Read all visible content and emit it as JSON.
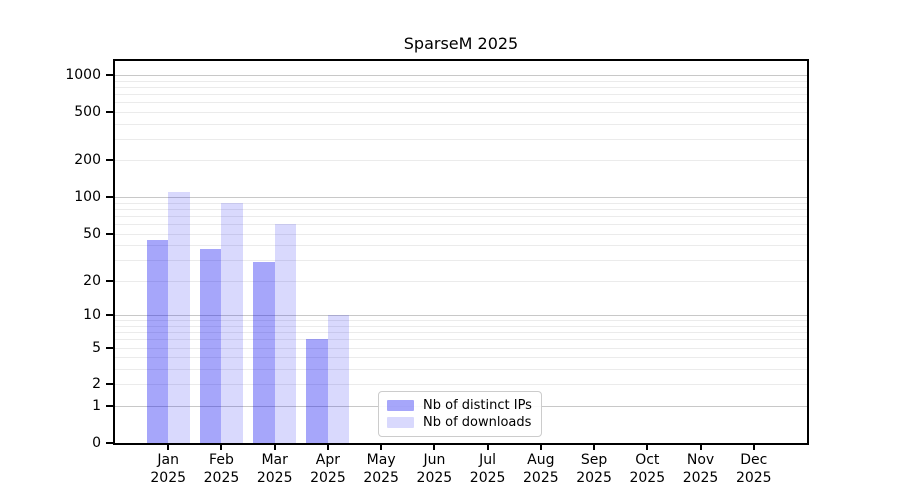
{
  "chart_data": {
    "type": "bar",
    "title": "SparseM 2025",
    "categories": [
      "Jan",
      "Feb",
      "Mar",
      "Apr",
      "May",
      "Jun",
      "Jul",
      "Aug",
      "Sep",
      "Oct",
      "Nov",
      "Dec"
    ],
    "year_label": "2025",
    "series": [
      {
        "name": "Nb of distinct IPs",
        "color": "#a6a6fa",
        "fill": "rgba(0,0,240,0.35)",
        "values": [
          44,
          37,
          29,
          6,
          0,
          0,
          0,
          0,
          0,
          0,
          0,
          0
        ]
      },
      {
        "name": "Nb of downloads",
        "color": "#dcdcfd",
        "fill": "rgba(0,0,240,0.15)",
        "values": [
          111,
          90,
          60,
          10,
          0,
          0,
          0,
          0,
          0,
          0,
          0,
          0
        ]
      }
    ],
    "yscale": "log1p",
    "ylim": [
      0,
      1300
    ],
    "yticks": [
      0,
      1,
      2,
      5,
      10,
      20,
      50,
      100,
      200,
      500,
      1000
    ],
    "grid": {
      "major_values": [
        1,
        10,
        100,
        1000
      ],
      "major_color": "#c8c8c8",
      "minor_color": "#ebebeb"
    },
    "axis_color": "#000000",
    "legend_position": "lower center-left inside plot"
  }
}
